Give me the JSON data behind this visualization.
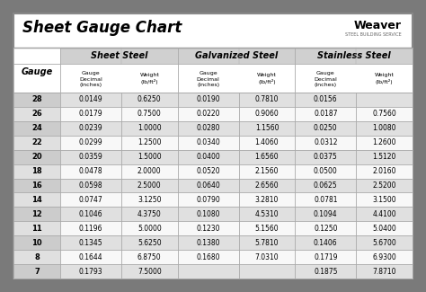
{
  "title": "Sheet Gauge Chart",
  "bg_outer": "#7a7a7a",
  "bg_inner": "#f2f2f2",
  "row_odd": "#e0e0e0",
  "row_even": "#f8f8f8",
  "gauge_col_odd": "#cccccc",
  "gauge_col_even": "#e0e0e0",
  "header_section_bg": "#d0d0d0",
  "line_color": "#aaaaaa",
  "border_color": "#888888",
  "gauges": [
    28,
    26,
    24,
    22,
    20,
    18,
    16,
    14,
    12,
    11,
    10,
    8,
    7
  ],
  "sheet_steel_dec": [
    "0.0149",
    "0.0179",
    "0.0239",
    "0.0299",
    "0.0359",
    "0.0478",
    "0.0598",
    "0.0747",
    "0.1046",
    "0.1196",
    "0.1345",
    "0.1644",
    "0.1793"
  ],
  "sheet_steel_wt": [
    "0.6250",
    "0.7500",
    "1.0000",
    "1.2500",
    "1.5000",
    "2.0000",
    "2.5000",
    "3.1250",
    "4.3750",
    "5.0000",
    "5.6250",
    "6.8750",
    "7.5000"
  ],
  "galv_dec": [
    "0.0190",
    "0.0220",
    "0.0280",
    "0.0340",
    "0.0400",
    "0.0520",
    "0.0640",
    "0.0790",
    "0.1080",
    "0.1230",
    "0.1380",
    "0.1680",
    ""
  ],
  "galv_wt": [
    "0.7810",
    "0.9060",
    "1.1560",
    "1.4060",
    "1.6560",
    "2.1560",
    "2.6560",
    "3.2810",
    "4.5310",
    "5.1560",
    "5.7810",
    "7.0310",
    ""
  ],
  "stain_dec": [
    "0.0156",
    "0.0187",
    "0.0250",
    "0.0312",
    "0.0375",
    "0.0500",
    "0.0625",
    "0.0781",
    "0.1094",
    "0.1250",
    "0.1406",
    "0.1719",
    "0.1875"
  ],
  "stain_wt": [
    "",
    "0.7560",
    "1.0080",
    "1.2600",
    "1.5120",
    "2.0160",
    "2.5200",
    "3.1500",
    "4.4100",
    "5.0400",
    "5.6700",
    "6.9300",
    "7.8710"
  ],
  "figsize": [
    4.74,
    3.25
  ],
  "dpi": 100
}
